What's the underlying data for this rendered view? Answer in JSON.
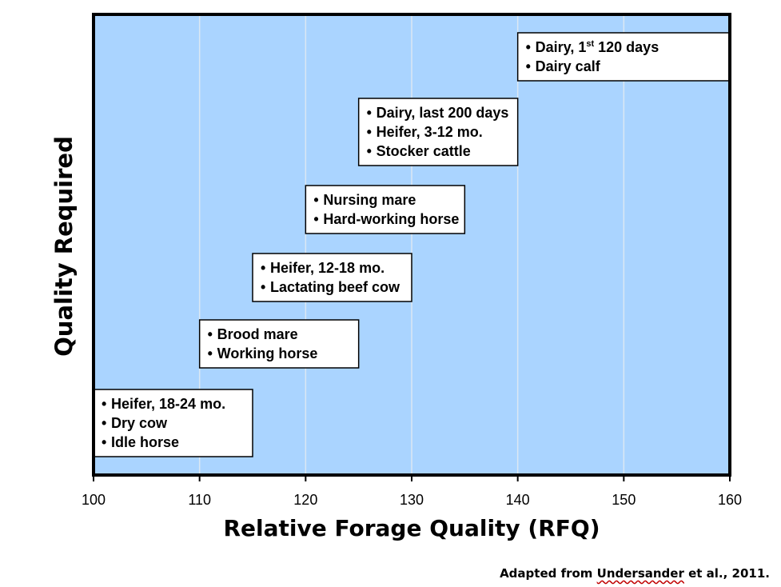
{
  "chart_data": {
    "type": "scatter",
    "title": "",
    "xlabel": "Relative Forage Quality (RFQ)",
    "ylabel": "Quality Required",
    "xlim": [
      100,
      160
    ],
    "xticks": [
      100,
      110,
      120,
      130,
      140,
      150,
      160
    ],
    "grid": "vertical",
    "background": "#aad4ff",
    "boxes": [
      {
        "x_start": 100,
        "x_end": 115,
        "level": 1,
        "items": [
          "Heifer, 18-24 mo.",
          "Dry cow",
          "Idle horse"
        ]
      },
      {
        "x_start": 110,
        "x_end": 125,
        "level": 2,
        "items": [
          "Brood mare",
          "Working horse"
        ]
      },
      {
        "x_start": 115,
        "x_end": 130,
        "level": 3,
        "items": [
          "Heifer, 12-18 mo.",
          "Lactating beef cow"
        ]
      },
      {
        "x_start": 120,
        "x_end": 135,
        "level": 4,
        "items": [
          "Nursing mare",
          "Hard-working horse"
        ]
      },
      {
        "x_start": 125,
        "x_end": 140,
        "level": 5,
        "items": [
          "Dairy, last 200 days",
          "Heifer, 3-12 mo.",
          "Stocker cattle"
        ]
      },
      {
        "x_start": 140,
        "x_end": 160,
        "level": 6,
        "items": [
          "Dairy, 1st 120 days",
          "Dairy calf"
        ]
      }
    ]
  },
  "source": {
    "prefix": "Adapted from ",
    "author": "Undersander",
    "suffix": " et al., 2011."
  }
}
